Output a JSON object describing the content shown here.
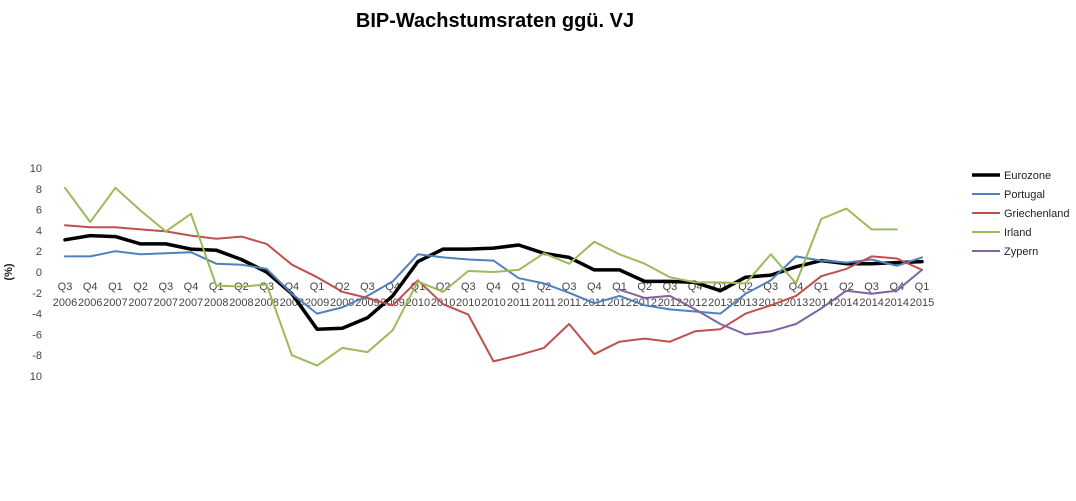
{
  "chart_data": {
    "type": "line",
    "title": "BIP-Wachstumsraten ggü. VJ",
    "ylabel": "(%)",
    "xlabel": "",
    "ylim": [
      -10,
      10
    ],
    "yticks": [
      10,
      8,
      6,
      4,
      2,
      0,
      -2,
      -4,
      -6,
      -8,
      10
    ],
    "grid": false,
    "legend_position": "right",
    "categories": [
      {
        "q": "Q3",
        "y": "2006"
      },
      {
        "q": "Q4",
        "y": "2006"
      },
      {
        "q": "Q1",
        "y": "2007"
      },
      {
        "q": "Q2",
        "y": "2007"
      },
      {
        "q": "Q3",
        "y": "2007"
      },
      {
        "q": "Q4",
        "y": "2007"
      },
      {
        "q": "Q1",
        "y": "2008"
      },
      {
        "q": "Q2",
        "y": "2008"
      },
      {
        "q": "Q3",
        "y": "2008"
      },
      {
        "q": "Q4",
        "y": "2008"
      },
      {
        "q": "Q1",
        "y": "2009"
      },
      {
        "q": "Q2",
        "y": "2009"
      },
      {
        "q": "Q3",
        "y": "2009"
      },
      {
        "q": "Q4",
        "y": "2009"
      },
      {
        "q": "Q1",
        "y": "2010"
      },
      {
        "q": "Q2",
        "y": "2010"
      },
      {
        "q": "Q3",
        "y": "2010"
      },
      {
        "q": "Q4",
        "y": "2010"
      },
      {
        "q": "Q1",
        "y": "2011"
      },
      {
        "q": "Q2",
        "y": "2011"
      },
      {
        "q": "Q3",
        "y": "2011"
      },
      {
        "q": "Q4",
        "y": "2011"
      },
      {
        "q": "Q1",
        "y": "2012"
      },
      {
        "q": "Q2",
        "y": "2012"
      },
      {
        "q": "Q3",
        "y": "2012"
      },
      {
        "q": "Q4",
        "y": "2012"
      },
      {
        "q": "Q1",
        "y": "2013"
      },
      {
        "q": "Q2",
        "y": "2013"
      },
      {
        "q": "Q3",
        "y": "2013"
      },
      {
        "q": "Q4",
        "y": "2013"
      },
      {
        "q": "Q1",
        "y": "2014"
      },
      {
        "q": "Q2",
        "y": "2014"
      },
      {
        "q": "Q3",
        "y": "2014"
      },
      {
        "q": "Q4",
        "y": "2014"
      },
      {
        "q": "Q1",
        "y": "2015"
      }
    ],
    "series": [
      {
        "name": "Eurozone",
        "color": "#000000",
        "width": 3.5,
        "values": [
          3.1,
          3.5,
          3.4,
          2.7,
          2.7,
          2.2,
          2.1,
          1.2,
          0.0,
          -2.1,
          -5.5,
          -5.4,
          -4.4,
          -2.3,
          1.0,
          2.2,
          2.2,
          2.3,
          2.6,
          1.8,
          1.4,
          0.2,
          0.2,
          -0.9,
          -0.9,
          -1.0,
          -1.8,
          -0.5,
          -0.3,
          0.5,
          1.1,
          0.8,
          0.8,
          0.9,
          1.0
        ]
      },
      {
        "name": "Portugal",
        "color": "#4f81bd",
        "width": 2,
        "values": [
          1.5,
          1.5,
          2.0,
          1.7,
          1.8,
          1.9,
          0.8,
          0.7,
          0.3,
          -2.1,
          -4.0,
          -3.4,
          -2.3,
          -0.9,
          1.7,
          1.4,
          1.2,
          1.1,
          -0.6,
          -1.1,
          -2.0,
          -3.0,
          -2.3,
          -3.2,
          -3.6,
          -3.8,
          -4.0,
          -2.1,
          -0.8,
          1.5,
          1.1,
          0.9,
          1.2,
          0.6,
          1.4
        ]
      },
      {
        "name": "Griechenland",
        "color": "#c0504d",
        "width": 2,
        "values": [
          4.5,
          4.3,
          4.3,
          4.1,
          3.9,
          3.5,
          3.2,
          3.4,
          2.7,
          0.7,
          -0.5,
          -1.9,
          -2.5,
          -3.2,
          -0.8,
          -3.1,
          -4.1,
          -8.6,
          -8.0,
          -7.3,
          -5.0,
          -7.9,
          -6.7,
          -6.4,
          -6.7,
          -5.7,
          -5.5,
          -4.0,
          -3.2,
          -2.3,
          -0.4,
          0.3,
          1.5,
          1.3,
          0.2
        ]
      },
      {
        "name": "Irland",
        "color": "#9bbb59",
        "width": 2,
        "values": [
          8.1,
          4.8,
          8.1,
          5.9,
          3.9,
          5.6,
          -1.3,
          -1.4,
          -1.2,
          -8.0,
          -9.0,
          -7.3,
          -7.7,
          -5.6,
          -0.9,
          -1.9,
          0.1,
          0.0,
          0.2,
          1.8,
          0.8,
          2.9,
          1.7,
          0.8,
          -0.5,
          -1.0,
          -1.0,
          -1.1,
          1.7,
          -1.1,
          5.1,
          6.1,
          4.1,
          4.1,
          null
        ]
      },
      {
        "name": "Zypern",
        "color": "#8064a2",
        "width": 2,
        "values": [
          null,
          null,
          null,
          null,
          null,
          null,
          null,
          null,
          null,
          null,
          null,
          null,
          null,
          null,
          null,
          null,
          null,
          null,
          null,
          null,
          null,
          null,
          -1.7,
          -2.5,
          -2.3,
          -3.6,
          -5.0,
          -6.0,
          -5.7,
          -5.0,
          -3.5,
          -1.8,
          -2.1,
          -1.8,
          0.2
        ]
      }
    ]
  }
}
